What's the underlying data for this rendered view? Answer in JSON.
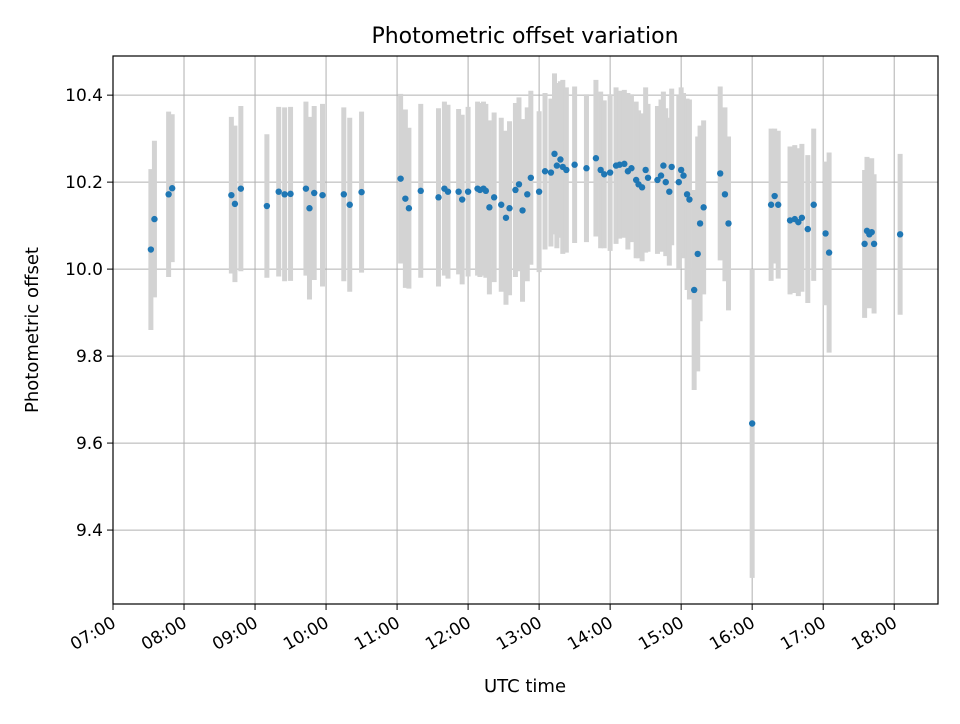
{
  "chart_data": {
    "type": "scatter",
    "title": "Photometric offset variation",
    "xlabel": "UTC time",
    "ylabel": "Photometric offset",
    "xlim": [
      "07:00",
      "18:37"
    ],
    "ylim": [
      9.23,
      10.49
    ],
    "x_ticks": [
      "07:00",
      "08:00",
      "09:00",
      "10:00",
      "11:00",
      "12:00",
      "13:00",
      "14:00",
      "15:00",
      "16:00",
      "17:00",
      "18:00"
    ],
    "y_ticks": [
      "9.4",
      "9.6",
      "9.8",
      "10.0",
      "10.2",
      "10.4"
    ],
    "grid": true,
    "colors": {
      "point": "#1f77b4",
      "errorbar": "#d3d3d3",
      "grid": "#b0b0b0"
    },
    "series": [
      {
        "values": [
          {
            "x": "07:32",
            "y": 10.045,
            "err": 0.185
          },
          {
            "x": "07:35",
            "y": 10.115,
            "err": 0.18
          },
          {
            "x": "07:47",
            "y": 10.172,
            "err": 0.19
          },
          {
            "x": "07:50",
            "y": 10.186,
            "err": 0.17
          },
          {
            "x": "08:40",
            "y": 10.17,
            "err": 0.18
          },
          {
            "x": "08:43",
            "y": 10.15,
            "err": 0.18
          },
          {
            "x": "08:48",
            "y": 10.185,
            "err": 0.19
          },
          {
            "x": "09:10",
            "y": 10.145,
            "err": 0.165
          },
          {
            "x": "09:20",
            "y": 10.178,
            "err": 0.195
          },
          {
            "x": "09:25",
            "y": 10.172,
            "err": 0.2
          },
          {
            "x": "09:30",
            "y": 10.173,
            "err": 0.2
          },
          {
            "x": "09:43",
            "y": 10.185,
            "err": 0.2
          },
          {
            "x": "09:46",
            "y": 10.14,
            "err": 0.21
          },
          {
            "x": "09:50",
            "y": 10.175,
            "err": 0.2
          },
          {
            "x": "09:57",
            "y": 10.17,
            "err": 0.21
          },
          {
            "x": "10:15",
            "y": 10.172,
            "err": 0.2
          },
          {
            "x": "10:20",
            "y": 10.148,
            "err": 0.2
          },
          {
            "x": "10:30",
            "y": 10.177,
            "err": 0.185
          },
          {
            "x": "11:03",
            "y": 10.208,
            "err": 0.195
          },
          {
            "x": "11:07",
            "y": 10.162,
            "err": 0.205
          },
          {
            "x": "11:10",
            "y": 10.14,
            "err": 0.185
          },
          {
            "x": "11:20",
            "y": 10.18,
            "err": 0.2
          },
          {
            "x": "11:35",
            "y": 10.165,
            "err": 0.205
          },
          {
            "x": "11:40",
            "y": 10.185,
            "err": 0.2
          },
          {
            "x": "11:43",
            "y": 10.178,
            "err": 0.2
          },
          {
            "x": "11:52",
            "y": 10.178,
            "err": 0.19
          },
          {
            "x": "11:55",
            "y": 10.16,
            "err": 0.195
          },
          {
            "x": "12:00",
            "y": 10.178,
            "err": 0.195
          },
          {
            "x": "12:08",
            "y": 10.185,
            "err": 0.2
          },
          {
            "x": "12:10",
            "y": 10.182,
            "err": 0.2
          },
          {
            "x": "12:13",
            "y": 10.185,
            "err": 0.2
          },
          {
            "x": "12:15",
            "y": 10.18,
            "err": 0.2
          },
          {
            "x": "12:18",
            "y": 10.142,
            "err": 0.2
          },
          {
            "x": "12:22",
            "y": 10.165,
            "err": 0.195
          },
          {
            "x": "12:28",
            "y": 10.148,
            "err": 0.2
          },
          {
            "x": "12:32",
            "y": 10.118,
            "err": 0.2
          },
          {
            "x": "12:35",
            "y": 10.14,
            "err": 0.2
          },
          {
            "x": "12:40",
            "y": 10.182,
            "err": 0.2
          },
          {
            "x": "12:43",
            "y": 10.195,
            "err": 0.2
          },
          {
            "x": "12:46",
            "y": 10.135,
            "err": 0.21
          },
          {
            "x": "12:50",
            "y": 10.172,
            "err": 0.2
          },
          {
            "x": "12:53",
            "y": 10.21,
            "err": 0.2
          },
          {
            "x": "13:00",
            "y": 10.178,
            "err": 0.185
          },
          {
            "x": "13:05",
            "y": 10.225,
            "err": 0.18
          },
          {
            "x": "13:10",
            "y": 10.222,
            "err": 0.17
          },
          {
            "x": "13:13",
            "y": 10.265,
            "err": 0.185
          },
          {
            "x": "13:15",
            "y": 10.238,
            "err": 0.19
          },
          {
            "x": "13:18",
            "y": 10.252,
            "err": 0.18
          },
          {
            "x": "13:20",
            "y": 10.235,
            "err": 0.2
          },
          {
            "x": "13:23",
            "y": 10.228,
            "err": 0.19
          },
          {
            "x": "13:30",
            "y": 10.24,
            "err": 0.18
          },
          {
            "x": "13:40",
            "y": 10.232,
            "err": 0.17
          },
          {
            "x": "13:48",
            "y": 10.255,
            "err": 0.18
          },
          {
            "x": "13:52",
            "y": 10.228,
            "err": 0.18
          },
          {
            "x": "13:55",
            "y": 10.218,
            "err": 0.17
          },
          {
            "x": "14:00",
            "y": 10.222,
            "err": 0.18
          },
          {
            "x": "14:05",
            "y": 10.238,
            "err": 0.18
          },
          {
            "x": "14:08",
            "y": 10.24,
            "err": 0.17
          },
          {
            "x": "14:12",
            "y": 10.242,
            "err": 0.17
          },
          {
            "x": "14:15",
            "y": 10.225,
            "err": 0.18
          },
          {
            "x": "14:18",
            "y": 10.232,
            "err": 0.17
          },
          {
            "x": "14:22",
            "y": 10.205,
            "err": 0.18
          },
          {
            "x": "14:24",
            "y": 10.195,
            "err": 0.17
          },
          {
            "x": "14:27",
            "y": 10.188,
            "err": 0.17
          },
          {
            "x": "14:30",
            "y": 10.228,
            "err": 0.19
          },
          {
            "x": "14:32",
            "y": 10.21,
            "err": 0.17
          },
          {
            "x": "14:40",
            "y": 10.205,
            "err": 0.17
          },
          {
            "x": "14:43",
            "y": 10.215,
            "err": 0.175
          },
          {
            "x": "14:45",
            "y": 10.238,
            "err": 0.17
          },
          {
            "x": "14:47",
            "y": 10.2,
            "err": 0.17
          },
          {
            "x": "14:50",
            "y": 10.178,
            "err": 0.17
          },
          {
            "x": "14:52",
            "y": 10.235,
            "err": 0.18
          },
          {
            "x": "14:58",
            "y": 10.2,
            "err": 0.2
          },
          {
            "x": "15:00",
            "y": 10.228,
            "err": 0.19
          },
          {
            "x": "15:02",
            "y": 10.215,
            "err": 0.19
          },
          {
            "x": "15:05",
            "y": 10.172,
            "err": 0.22
          },
          {
            "x": "15:07",
            "y": 10.16,
            "err": 0.23
          },
          {
            "x": "15:11",
            "y": 9.952,
            "err": 0.23
          },
          {
            "x": "15:14",
            "y": 10.035,
            "err": 0.27
          },
          {
            "x": "15:16",
            "y": 10.105,
            "err": 0.225
          },
          {
            "x": "15:19",
            "y": 10.142,
            "err": 0.2
          },
          {
            "x": "15:33",
            "y": 10.22,
            "err": 0.2
          },
          {
            "x": "15:37",
            "y": 10.172,
            "err": 0.2
          },
          {
            "x": "15:40",
            "y": 10.105,
            "err": 0.2
          },
          {
            "x": "16:00",
            "y": 9.645,
            "err": 0.355
          },
          {
            "x": "16:16",
            "y": 10.148,
            "err": 0.175
          },
          {
            "x": "16:19",
            "y": 10.168,
            "err": 0.155
          },
          {
            "x": "16:22",
            "y": 10.148,
            "err": 0.17
          },
          {
            "x": "16:32",
            "y": 10.112,
            "err": 0.17
          },
          {
            "x": "16:36",
            "y": 10.115,
            "err": 0.17
          },
          {
            "x": "16:39",
            "y": 10.108,
            "err": 0.17
          },
          {
            "x": "16:42",
            "y": 10.118,
            "err": 0.17
          },
          {
            "x": "16:47",
            "y": 10.092,
            "err": 0.17
          },
          {
            "x": "16:52",
            "y": 10.148,
            "err": 0.175
          },
          {
            "x": "17:02",
            "y": 10.082,
            "err": 0.165
          },
          {
            "x": "17:05",
            "y": 10.038,
            "err": 0.23
          },
          {
            "x": "17:35",
            "y": 10.058,
            "err": 0.17
          },
          {
            "x": "17:37",
            "y": 10.088,
            "err": 0.17
          },
          {
            "x": "17:39",
            "y": 10.08,
            "err": 0.17
          },
          {
            "x": "17:41",
            "y": 10.085,
            "err": 0.17
          },
          {
            "x": "17:43",
            "y": 10.058,
            "err": 0.16
          },
          {
            "x": "18:05",
            "y": 10.08,
            "err": 0.185
          }
        ]
      }
    ]
  }
}
